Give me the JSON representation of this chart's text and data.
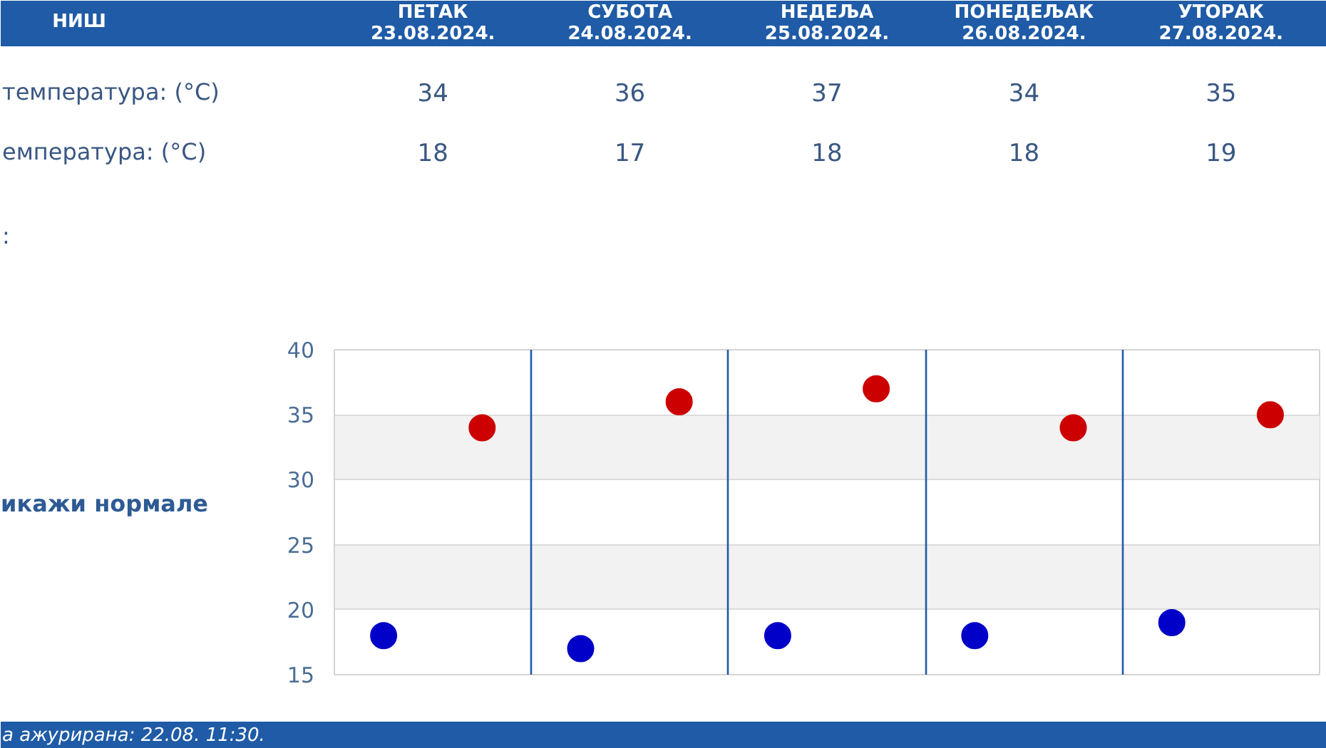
{
  "chart_data": {
    "type": "scatter",
    "title": "НИШ",
    "categories": [
      null,
      null,
      null,
      null,
      null
    ],
    "series": [
      {
        "color": "#cc0000",
        "values": [
          34,
          36,
          37,
          34,
          35
        ]
      },
      {
        "color": "#0000c8",
        "values": [
          18,
          17,
          18,
          18,
          19
        ]
      }
    ],
    "ylim": [
      15,
      40
    ],
    "yticks": [
      15,
      20,
      25,
      30,
      35,
      40
    ],
    "grid": true,
    "marker": "circle",
    "data_labels": true,
    "annotations": [
      "ПЕТАК\n23.08.2024.",
      "СУБОТА\n24.08.2024.",
      "НЕДЕЉА\n25.08.2024.",
      "ПОНЕДЕЉАК\n26.08.2024.",
      "УТОРАК\n27.08.2024.",
      "температура: (°C)",
      "емпература: (°C)",
      ":",
      "икажи нормале",
      "а ажурирана:  22.08. 11:30."
    ]
  }
}
